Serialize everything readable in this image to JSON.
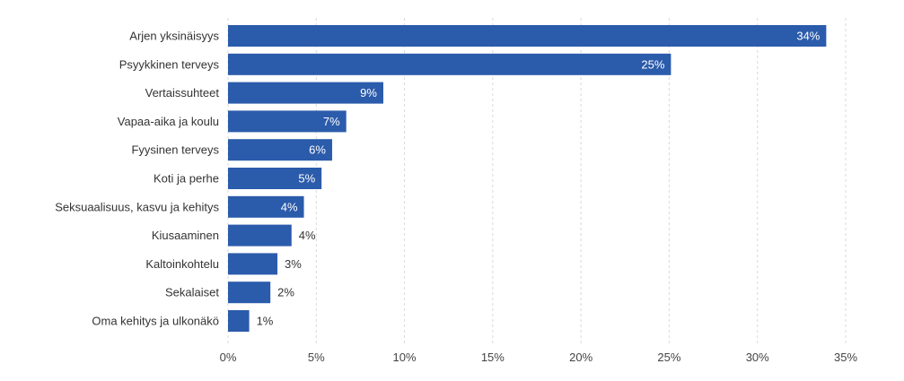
{
  "chart_data": {
    "type": "bar",
    "orientation": "horizontal",
    "title": "",
    "xlabel": "",
    "ylabel": "",
    "categories": [
      "Arjen yksinäisyys",
      "Psyykkinen terveys",
      "Vertaissuhteet",
      "Vapaa-aika ja koulu",
      "Fyysinen terveys",
      "Koti ja perhe",
      "Seksuaalisuus, kasvu ja kehitys",
      "Kiusaaminen",
      "Kaltoinkohtelu",
      "Sekalaiset",
      "Oma kehitys ja ulkonäkö"
    ],
    "values": [
      33.9,
      25.1,
      8.8,
      6.7,
      5.9,
      5.3,
      4.3,
      3.6,
      2.8,
      2.4,
      1.2
    ],
    "value_labels": [
      "34%",
      "25%",
      "9%",
      "7%",
      "6%",
      "5%",
      "4%",
      "4%",
      "3%",
      "2%",
      "1%"
    ],
    "xticks": [
      0,
      5,
      10,
      15,
      20,
      25,
      30,
      35
    ],
    "xtick_labels": [
      "0%",
      "5%",
      "10%",
      "15%",
      "20%",
      "25%",
      "30%",
      "35%"
    ],
    "xlim": [
      0,
      35
    ],
    "grid": true,
    "legend": "none",
    "colors": {
      "bar": "#2b5bab",
      "label_inside": "#ffffff",
      "label_outside": "#333333",
      "grid": "#d9d9d9"
    }
  }
}
